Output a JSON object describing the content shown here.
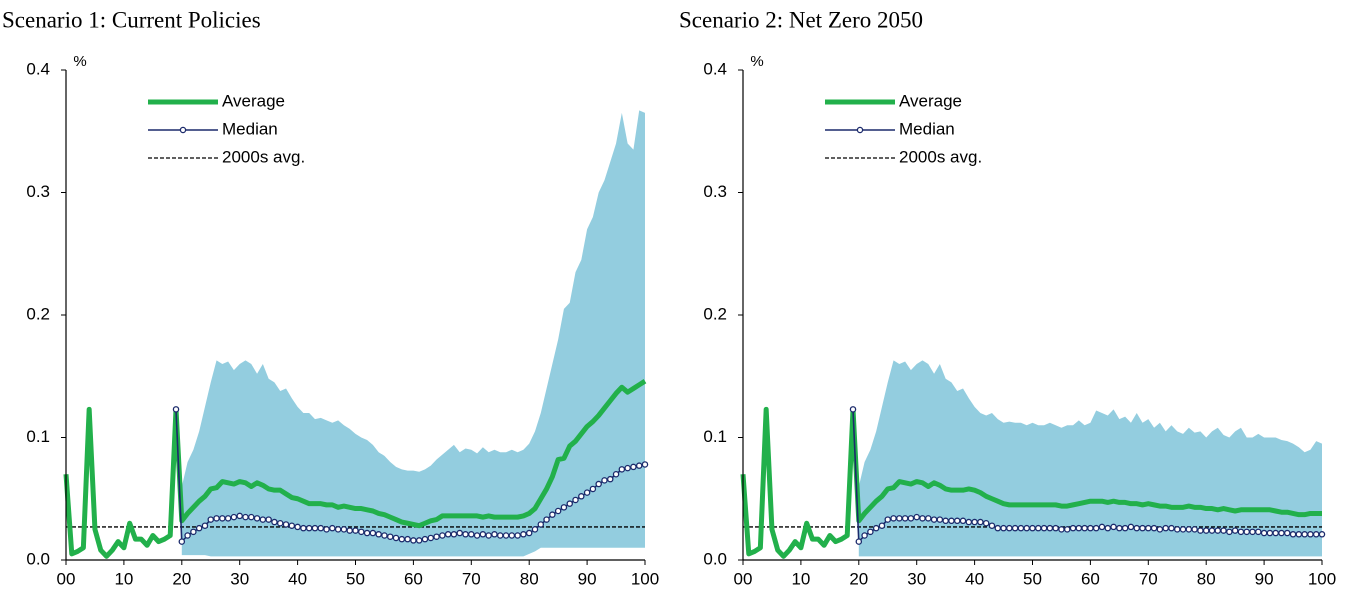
{
  "chart_data": [
    {
      "type": "line",
      "title": "Scenario 1: Current Policies",
      "y_unit": "%",
      "x": [
        0,
        1,
        2,
        3,
        4,
        5,
        6,
        7,
        8,
        9,
        10,
        11,
        12,
        13,
        14,
        15,
        16,
        17,
        18,
        19,
        20,
        21,
        22,
        23,
        24,
        25,
        26,
        27,
        28,
        29,
        30,
        31,
        32,
        33,
        34,
        35,
        36,
        37,
        38,
        39,
        40,
        41,
        42,
        43,
        44,
        45,
        46,
        47,
        48,
        49,
        50,
        51,
        52,
        53,
        54,
        55,
        56,
        57,
        58,
        59,
        60,
        61,
        62,
        63,
        64,
        65,
        66,
        67,
        68,
        69,
        70,
        71,
        72,
        73,
        74,
        75,
        76,
        77,
        78,
        79,
        80,
        81,
        82,
        83,
        84,
        85,
        86,
        87,
        88,
        89,
        90,
        91,
        92,
        93,
        94,
        95,
        96,
        97,
        98,
        99,
        100
      ],
      "xlim": [
        0,
        100
      ],
      "xticks": [
        {
          "value": 0,
          "label": "00"
        },
        10,
        20,
        30,
        40,
        50,
        60,
        70,
        80,
        90,
        100
      ],
      "ylim": [
        0,
        0.4
      ],
      "yticks": [
        {
          "value": 0,
          "label": "0.0"
        },
        0.1,
        0.2,
        0.3,
        0.4
      ],
      "band": {
        "color": "#93cddf",
        "high": [
          null,
          null,
          null,
          null,
          null,
          null,
          null,
          null,
          null,
          null,
          null,
          null,
          null,
          null,
          null,
          null,
          null,
          null,
          null,
          null,
          0.06,
          0.08,
          0.09,
          0.105,
          0.125,
          0.145,
          0.163,
          0.16,
          0.162,
          0.155,
          0.16,
          0.163,
          0.16,
          0.152,
          0.16,
          0.148,
          0.145,
          0.138,
          0.14,
          0.132,
          0.125,
          0.12,
          0.12,
          0.115,
          0.116,
          0.114,
          0.112,
          0.114,
          0.11,
          0.107,
          0.103,
          0.1,
          0.098,
          0.094,
          0.088,
          0.085,
          0.08,
          0.076,
          0.074,
          0.073,
          0.073,
          0.072,
          0.074,
          0.077,
          0.082,
          0.086,
          0.09,
          0.094,
          0.088,
          0.091,
          0.09,
          0.087,
          0.092,
          0.088,
          0.09,
          0.088,
          0.088,
          0.09,
          0.088,
          0.09,
          0.095,
          0.105,
          0.12,
          0.14,
          0.16,
          0.18,
          0.205,
          0.21,
          0.235,
          0.245,
          0.27,
          0.28,
          0.3,
          0.31,
          0.325,
          0.34,
          0.365,
          0.34,
          0.335,
          0.367,
          0.365
        ],
        "low": [
          null,
          null,
          null,
          null,
          null,
          null,
          null,
          null,
          null,
          null,
          null,
          null,
          null,
          null,
          null,
          null,
          null,
          null,
          null,
          null,
          0.004,
          0.004,
          0.004,
          0.004,
          0.004,
          0.003,
          0.003,
          0.003,
          0.003,
          0.003,
          0.003,
          0.003,
          0.003,
          0.003,
          0.003,
          0.003,
          0.003,
          0.003,
          0.003,
          0.003,
          0.003,
          0.003,
          0.003,
          0.003,
          0.003,
          0.003,
          0.003,
          0.003,
          0.003,
          0.003,
          0.003,
          0.003,
          0.003,
          0.003,
          0.003,
          0.003,
          0.003,
          0.003,
          0.003,
          0.003,
          0.003,
          0.003,
          0.003,
          0.003,
          0.003,
          0.003,
          0.003,
          0.003,
          0.003,
          0.003,
          0.003,
          0.003,
          0.003,
          0.003,
          0.003,
          0.003,
          0.003,
          0.003,
          0.003,
          0.003,
          0.005,
          0.007,
          0.01,
          0.01,
          0.01,
          0.01,
          0.01,
          0.01,
          0.01,
          0.01,
          0.01,
          0.01,
          0.01,
          0.01,
          0.01,
          0.01,
          0.01,
          0.01,
          0.01,
          0.01,
          0.01
        ]
      },
      "series": [
        {
          "name": "Average",
          "color": "#22b04b",
          "values": [
            0.07,
            0.005,
            0.007,
            0.01,
            0.123,
            0.025,
            0.008,
            0.003,
            0.008,
            0.015,
            0.01,
            0.03,
            0.017,
            0.017,
            0.012,
            0.02,
            0.015,
            0.017,
            0.02,
            0.123,
            0.032,
            0.038,
            0.043,
            0.048,
            0.052,
            0.058,
            0.059,
            0.064,
            0.063,
            0.062,
            0.064,
            0.063,
            0.06,
            0.063,
            0.061,
            0.058,
            0.057,
            0.057,
            0.054,
            0.051,
            0.05,
            0.048,
            0.046,
            0.046,
            0.046,
            0.045,
            0.045,
            0.043,
            0.044,
            0.043,
            0.042,
            0.042,
            0.041,
            0.04,
            0.038,
            0.037,
            0.035,
            0.033,
            0.031,
            0.03,
            0.029,
            0.028,
            0.03,
            0.032,
            0.033,
            0.036,
            0.036,
            0.036,
            0.036,
            0.036,
            0.036,
            0.036,
            0.035,
            0.036,
            0.035,
            0.035,
            0.035,
            0.035,
            0.035,
            0.036,
            0.038,
            0.042,
            0.05,
            0.058,
            0.068,
            0.082,
            0.083,
            0.093,
            0.097,
            0.103,
            0.109,
            0.113,
            0.118,
            0.124,
            0.13,
            0.136,
            0.141,
            0.137,
            0.14,
            0.143,
            0.146
          ]
        },
        {
          "name": "Median",
          "color": "#1b2a6b",
          "values": [
            null,
            null,
            null,
            null,
            null,
            null,
            null,
            null,
            null,
            null,
            null,
            null,
            null,
            null,
            null,
            null,
            null,
            null,
            null,
            0.123,
            0.015,
            0.02,
            0.023,
            0.026,
            0.028,
            0.033,
            0.034,
            0.034,
            0.034,
            0.035,
            0.036,
            0.035,
            0.035,
            0.034,
            0.033,
            0.033,
            0.031,
            0.03,
            0.029,
            0.028,
            0.027,
            0.026,
            0.026,
            0.026,
            0.026,
            0.025,
            0.026,
            0.025,
            0.025,
            0.024,
            0.024,
            0.023,
            0.022,
            0.022,
            0.021,
            0.02,
            0.019,
            0.018,
            0.017,
            0.017,
            0.016,
            0.016,
            0.017,
            0.018,
            0.019,
            0.02,
            0.021,
            0.021,
            0.022,
            0.021,
            0.021,
            0.02,
            0.021,
            0.02,
            0.021,
            0.02,
            0.02,
            0.02,
            0.02,
            0.021,
            0.022,
            0.025,
            0.029,
            0.033,
            0.037,
            0.04,
            0.043,
            0.046,
            0.049,
            0.052,
            0.055,
            0.058,
            0.062,
            0.065,
            0.066,
            0.07,
            0.074,
            0.075,
            0.076,
            0.077,
            0.078
          ]
        }
      ],
      "reference_line": {
        "name": "2000s avg.",
        "value": 0.027,
        "color": "#000000"
      }
    },
    {
      "type": "line",
      "title": "Scenario 2: Net Zero 2050",
      "y_unit": "%",
      "x": [
        0,
        1,
        2,
        3,
        4,
        5,
        6,
        7,
        8,
        9,
        10,
        11,
        12,
        13,
        14,
        15,
        16,
        17,
        18,
        19,
        20,
        21,
        22,
        23,
        24,
        25,
        26,
        27,
        28,
        29,
        30,
        31,
        32,
        33,
        34,
        35,
        36,
        37,
        38,
        39,
        40,
        41,
        42,
        43,
        44,
        45,
        46,
        47,
        48,
        49,
        50,
        51,
        52,
        53,
        54,
        55,
        56,
        57,
        58,
        59,
        60,
        61,
        62,
        63,
        64,
        65,
        66,
        67,
        68,
        69,
        70,
        71,
        72,
        73,
        74,
        75,
        76,
        77,
        78,
        79,
        80,
        81,
        82,
        83,
        84,
        85,
        86,
        87,
        88,
        89,
        90,
        91,
        92,
        93,
        94,
        95,
        96,
        97,
        98,
        99,
        100
      ],
      "xlim": [
        0,
        100
      ],
      "xticks": [
        {
          "value": 0,
          "label": "00"
        },
        10,
        20,
        30,
        40,
        50,
        60,
        70,
        80,
        90,
        100
      ],
      "ylim": [
        0,
        0.4
      ],
      "yticks": [
        {
          "value": 0,
          "label": "0.0"
        },
        0.1,
        0.2,
        0.3,
        0.4
      ],
      "band": {
        "color": "#93cddf",
        "high": [
          null,
          null,
          null,
          null,
          null,
          null,
          null,
          null,
          null,
          null,
          null,
          null,
          null,
          null,
          null,
          null,
          null,
          null,
          null,
          null,
          0.06,
          0.08,
          0.09,
          0.105,
          0.125,
          0.145,
          0.163,
          0.16,
          0.162,
          0.155,
          0.16,
          0.163,
          0.16,
          0.152,
          0.16,
          0.148,
          0.145,
          0.138,
          0.14,
          0.132,
          0.125,
          0.12,
          0.118,
          0.12,
          0.115,
          0.112,
          0.113,
          0.112,
          0.112,
          0.11,
          0.112,
          0.11,
          0.11,
          0.112,
          0.11,
          0.108,
          0.11,
          0.11,
          0.114,
          0.11,
          0.112,
          0.122,
          0.12,
          0.118,
          0.123,
          0.115,
          0.117,
          0.112,
          0.12,
          0.112,
          0.115,
          0.108,
          0.112,
          0.105,
          0.11,
          0.105,
          0.103,
          0.108,
          0.104,
          0.105,
          0.1,
          0.105,
          0.108,
          0.102,
          0.1,
          0.105,
          0.108,
          0.1,
          0.1,
          0.103,
          0.1,
          0.1,
          0.1,
          0.098,
          0.097,
          0.095,
          0.092,
          0.088,
          0.09,
          0.097,
          0.095
        ],
        "low": [
          null,
          null,
          null,
          null,
          null,
          null,
          null,
          null,
          null,
          null,
          null,
          null,
          null,
          null,
          null,
          null,
          null,
          null,
          null,
          null,
          0.003,
          0.003,
          0.003,
          0.003,
          0.003,
          0.003,
          0.003,
          0.003,
          0.003,
          0.003,
          0.003,
          0.003,
          0.003,
          0.003,
          0.003,
          0.003,
          0.003,
          0.003,
          0.003,
          0.003,
          0.003,
          0.003,
          0.003,
          0.003,
          0.003,
          0.003,
          0.003,
          0.003,
          0.003,
          0.003,
          0.003,
          0.003,
          0.003,
          0.003,
          0.003,
          0.003,
          0.003,
          0.003,
          0.003,
          0.003,
          0.003,
          0.003,
          0.003,
          0.003,
          0.003,
          0.003,
          0.003,
          0.003,
          0.003,
          0.003,
          0.003,
          0.003,
          0.003,
          0.003,
          0.003,
          0.003,
          0.003,
          0.003,
          0.003,
          0.003,
          0.003,
          0.003,
          0.003,
          0.003,
          0.003,
          0.003,
          0.003,
          0.003,
          0.003,
          0.003,
          0.003,
          0.003,
          0.003,
          0.003,
          0.003,
          0.003,
          0.003,
          0.003,
          0.003,
          0.003,
          0.003
        ]
      },
      "series": [
        {
          "name": "Average",
          "color": "#22b04b",
          "values": [
            0.07,
            0.005,
            0.007,
            0.01,
            0.123,
            0.025,
            0.008,
            0.003,
            0.008,
            0.015,
            0.01,
            0.03,
            0.017,
            0.017,
            0.012,
            0.02,
            0.015,
            0.017,
            0.02,
            0.123,
            0.032,
            0.038,
            0.043,
            0.048,
            0.052,
            0.058,
            0.059,
            0.064,
            0.063,
            0.062,
            0.064,
            0.063,
            0.06,
            0.063,
            0.061,
            0.058,
            0.057,
            0.057,
            0.057,
            0.058,
            0.057,
            0.055,
            0.052,
            0.05,
            0.048,
            0.046,
            0.045,
            0.045,
            0.045,
            0.045,
            0.045,
            0.045,
            0.045,
            0.045,
            0.045,
            0.044,
            0.044,
            0.045,
            0.046,
            0.047,
            0.048,
            0.048,
            0.048,
            0.047,
            0.048,
            0.047,
            0.047,
            0.046,
            0.046,
            0.045,
            0.046,
            0.045,
            0.044,
            0.044,
            0.043,
            0.043,
            0.043,
            0.044,
            0.043,
            0.043,
            0.042,
            0.042,
            0.041,
            0.042,
            0.041,
            0.04,
            0.041,
            0.041,
            0.041,
            0.041,
            0.041,
            0.041,
            0.04,
            0.039,
            0.039,
            0.038,
            0.037,
            0.037,
            0.038,
            0.038,
            0.038
          ]
        },
        {
          "name": "Median",
          "color": "#1b2a6b",
          "values": [
            null,
            null,
            null,
            null,
            null,
            null,
            null,
            null,
            null,
            null,
            null,
            null,
            null,
            null,
            null,
            null,
            null,
            null,
            null,
            0.123,
            0.015,
            0.02,
            0.023,
            0.026,
            0.028,
            0.033,
            0.034,
            0.034,
            0.034,
            0.034,
            0.035,
            0.034,
            0.034,
            0.033,
            0.033,
            0.032,
            0.032,
            0.032,
            0.032,
            0.031,
            0.031,
            0.031,
            0.03,
            0.028,
            0.026,
            0.026,
            0.026,
            0.026,
            0.026,
            0.026,
            0.026,
            0.026,
            0.026,
            0.026,
            0.026,
            0.025,
            0.025,
            0.026,
            0.026,
            0.026,
            0.026,
            0.026,
            0.027,
            0.026,
            0.027,
            0.026,
            0.026,
            0.027,
            0.026,
            0.026,
            0.026,
            0.026,
            0.025,
            0.026,
            0.026,
            0.025,
            0.025,
            0.025,
            0.025,
            0.024,
            0.024,
            0.024,
            0.024,
            0.024,
            0.023,
            0.024,
            0.023,
            0.023,
            0.023,
            0.023,
            0.022,
            0.022,
            0.022,
            0.022,
            0.022,
            0.021,
            0.021,
            0.021,
            0.021,
            0.021,
            0.021
          ]
        }
      ],
      "reference_line": {
        "name": "2000s avg.",
        "value": 0.027,
        "color": "#000000"
      }
    }
  ]
}
